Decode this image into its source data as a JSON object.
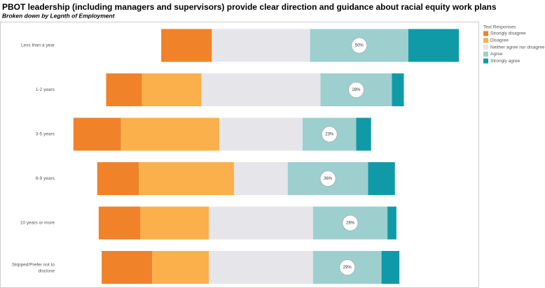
{
  "chart_data": {
    "type": "diverging_stacked_bar",
    "title": "PBOT leadership (including managers and supervisors) provide clear direction and guidance about racial equity work plans",
    "subtitle": "Broken down by Legnth of Employment",
    "legend_title": "Text Responses",
    "categories": [
      "Less than a year",
      "1-2 years",
      "3-5 years",
      "6-9 years",
      "10 years or more",
      "Skipped/Prefer not to disclose"
    ],
    "series": [
      {
        "name": "Strongly disagree",
        "color": "#f0822a",
        "values": [
          17,
          12,
          16,
          14,
          14,
          17
        ]
      },
      {
        "name": "Disagree",
        "color": "#fbb04b",
        "values": [
          0,
          20,
          33,
          32,
          23,
          19
        ]
      },
      {
        "name": "Neither agree nor disagree",
        "color": "#e6e6ea",
        "values": [
          33,
          40,
          28,
          18,
          35,
          35
        ]
      },
      {
        "name": "Agree",
        "color": "#9dcfcf",
        "values": [
          33,
          24,
          18,
          27,
          25,
          23
        ]
      },
      {
        "name": "Strongly agree",
        "color": "#109aa8",
        "values": [
          17,
          4,
          5,
          9,
          3,
          6
        ]
      }
    ],
    "agree_totals": [
      50,
      28,
      23,
      36,
      28,
      29
    ],
    "agree_total_labels": [
      "50%",
      "28%",
      "23%",
      "36%",
      "28%",
      "29%"
    ]
  }
}
